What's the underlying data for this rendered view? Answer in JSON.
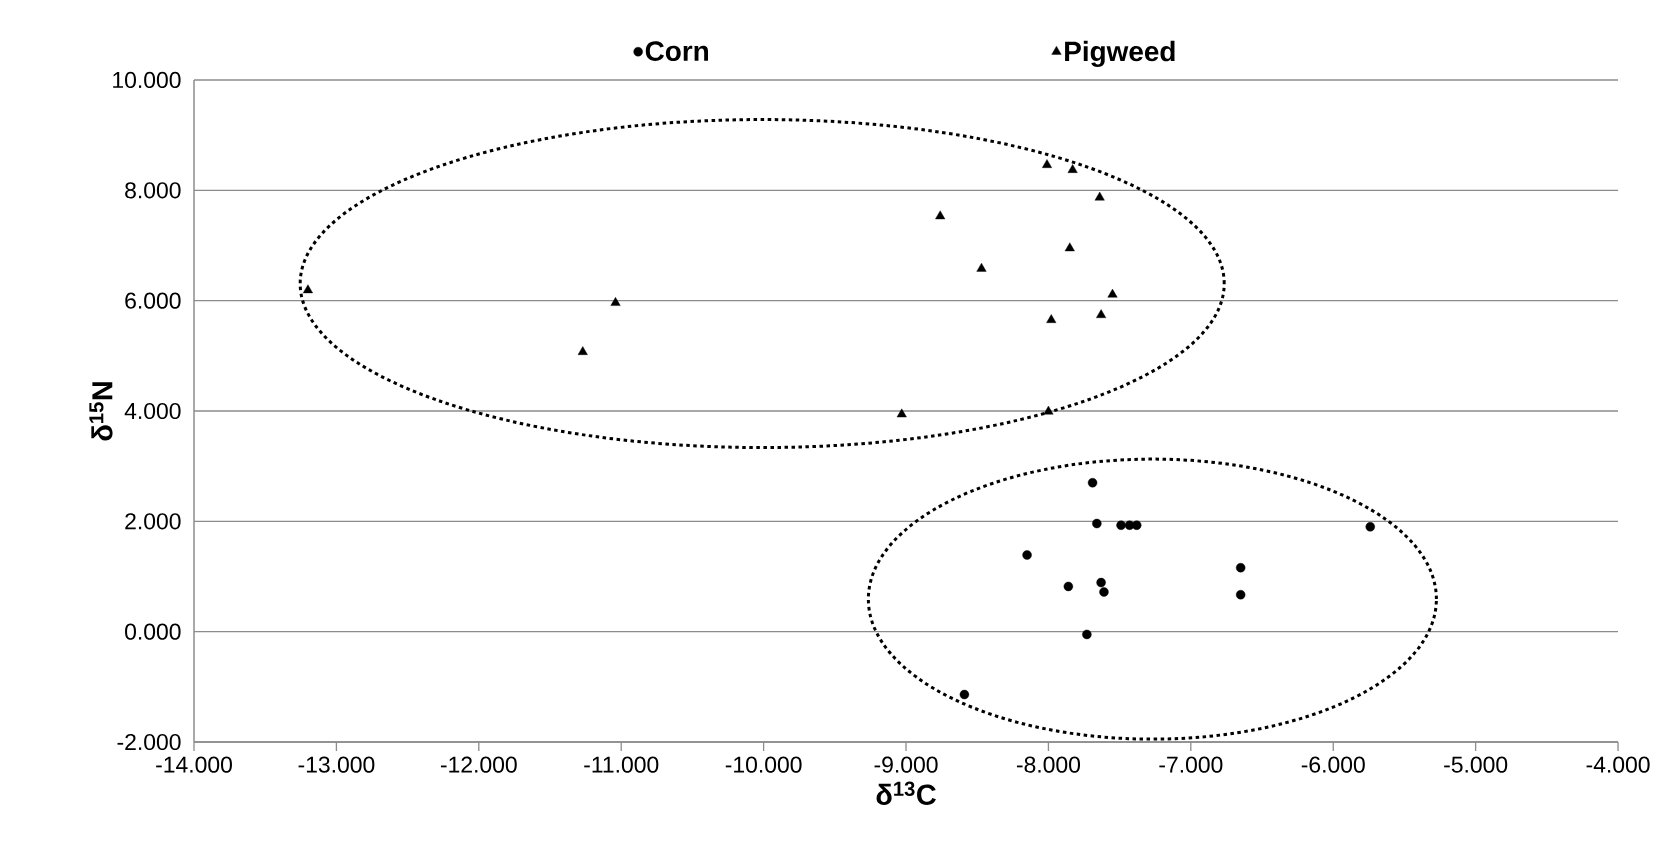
{
  "chart_data": {
    "type": "scatter",
    "xlabel": "δ$^{13}$C",
    "ylabel": "δ$^{15}$N",
    "xlim": [
      -14,
      -4
    ],
    "ylim": [
      -2,
      10
    ],
    "xticks": [
      {
        "value": -14,
        "label": "-14.000"
      },
      {
        "value": -13,
        "label": "-13.000"
      },
      {
        "value": -12,
        "label": "-12.000"
      },
      {
        "value": -11,
        "label": "-11.000"
      },
      {
        "value": -10,
        "label": "-10.000"
      },
      {
        "value": -9,
        "label": "-9.000"
      },
      {
        "value": -8,
        "label": "-8.000"
      },
      {
        "value": -7,
        "label": "-7.000"
      },
      {
        "value": -6,
        "label": "-6.000"
      },
      {
        "value": -5,
        "label": "-5.000"
      },
      {
        "value": -4,
        "label": "-4.000"
      }
    ],
    "yticks": [
      {
        "value": -2,
        "label": "-2.000"
      },
      {
        "value": 0,
        "label": "0.000"
      },
      {
        "value": 2,
        "label": "2.000"
      },
      {
        "value": 4,
        "label": "4.000"
      },
      {
        "value": 6,
        "label": "6.000"
      },
      {
        "value": 8,
        "label": "8.000"
      },
      {
        "value": 10,
        "label": "10.000"
      }
    ],
    "grid": "y",
    "legend": "top",
    "series": [
      {
        "name": "Corn",
        "color": "#000000",
        "marker": "circle",
        "x": [
          -7.69,
          -7.66,
          -7.49,
          -7.43,
          -7.38,
          -8.15,
          -7.86,
          -7.63,
          -7.61,
          -7.73,
          -8.59,
          -6.65,
          -6.65,
          -5.74
        ],
        "values": [
          2.7,
          1.96,
          1.93,
          1.93,
          1.93,
          1.39,
          0.82,
          0.89,
          0.72,
          -0.05,
          -1.14,
          1.16,
          0.67,
          1.9
        ]
      },
      {
        "name": "Pigweed",
        "color": "#000000",
        "marker": "triangle",
        "x": [
          -13.2,
          -11.04,
          -11.27,
          -8.76,
          -8.47,
          -8.01,
          -7.83,
          -7.64,
          -7.85,
          -7.55,
          -7.98,
          -7.63,
          -9.03,
          -8.0
        ],
        "values": [
          6.19,
          5.96,
          5.07,
          7.53,
          6.58,
          8.46,
          8.37,
          7.87,
          6.95,
          6.11,
          5.65,
          5.74,
          3.94,
          3.99
        ]
      }
    ]
  }
}
